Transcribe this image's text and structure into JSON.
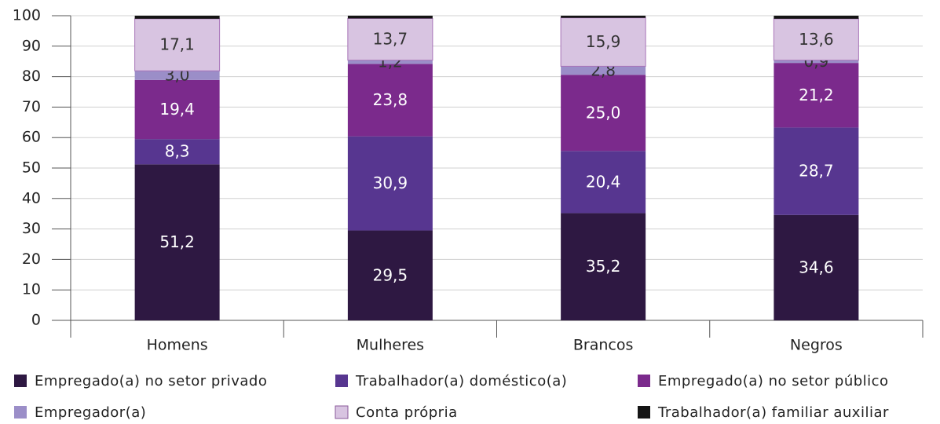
{
  "chart_data": {
    "type": "stacked_bar",
    "categories": [
      "Homens",
      "Mulheres",
      "Brancos",
      "Negros"
    ],
    "series": [
      {
        "name": "Empregado(a) no setor privado",
        "color": "#2e1842",
        "values": [
          51.2,
          29.5,
          35.2,
          34.6
        ],
        "value_labels": [
          "51,2",
          "29,5",
          "35,2",
          "34,6"
        ]
      },
      {
        "name": "Trabalhador(a) doméstico(a)",
        "color": "#573690",
        "values": [
          8.3,
          30.9,
          20.4,
          28.7
        ],
        "value_labels": [
          "8,3",
          "30,9",
          "20,4",
          "28,7"
        ]
      },
      {
        "name": "Empregado(a) no setor público",
        "color": "#7b2a8c",
        "values": [
          19.4,
          23.8,
          25.0,
          21.2
        ],
        "value_labels": [
          "19,4",
          "23,8",
          "25,0",
          "21,2"
        ]
      },
      {
        "name": "Empregador(a)",
        "color": "#9b8ec8",
        "values": [
          3.0,
          1.2,
          2.8,
          0.9
        ],
        "value_labels": [
          "3,0",
          "1,2",
          "2,8",
          "0,9"
        ]
      },
      {
        "name": "Conta própria",
        "color": "#d8c4e1",
        "values": [
          17.1,
          13.7,
          15.9,
          13.6
        ],
        "value_labels": [
          "17,1",
          "13,7",
          "15,9",
          "13,6"
        ]
      },
      {
        "name": "Trabalhador(a) familiar auxiliar",
        "color": "#151515",
        "values": [
          1.0,
          0.9,
          0.7,
          1.0
        ]
      }
    ],
    "ylim": [
      0,
      100
    ],
    "yticks": [
      0,
      10,
      20,
      30,
      40,
      50,
      60,
      70,
      80,
      90,
      100
    ],
    "grid": true
  }
}
